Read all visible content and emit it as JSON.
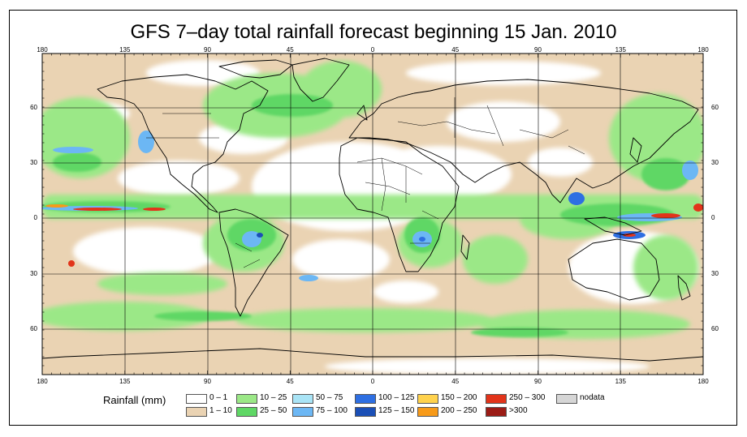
{
  "title": "GFS 7–day total rainfall forecast beginning 15 Jan. 2010",
  "axes": {
    "lon_ticks": [
      "180",
      "135",
      "90",
      "45",
      "0",
      "45",
      "90",
      "135",
      "180"
    ],
    "lat_ticks": [
      "60",
      "30",
      "0",
      "30",
      "60"
    ]
  },
  "legend": {
    "title": "Rainfall (mm)",
    "items": [
      {
        "label": "0 – 1",
        "color": "#ffffff"
      },
      {
        "label": "1 – 10",
        "color": "#ead3b3"
      },
      {
        "label": "10 – 25",
        "color": "#9be887"
      },
      {
        "label": "25 – 50",
        "color": "#5fd765"
      },
      {
        "label": "50 – 75",
        "color": "#a9e4f6"
      },
      {
        "label": "75 – 100",
        "color": "#6cb7f4"
      },
      {
        "label": "100 – 125",
        "color": "#2e6fe2"
      },
      {
        "label": "125 – 150",
        "color": "#1b4fb6"
      },
      {
        "label": "150 – 200",
        "color": "#ffd24d"
      },
      {
        "label": "200 – 250",
        "color": "#f79a19"
      },
      {
        "label": "250 – 300",
        "color": "#e2341a"
      },
      {
        "label": ">300",
        "color": "#9b1c16"
      },
      {
        "label": "nodata",
        "color": "#d6d6d6"
      }
    ]
  },
  "colors": {
    "background": "#ffffff",
    "coastline": "#000000",
    "grid": "#000000"
  }
}
